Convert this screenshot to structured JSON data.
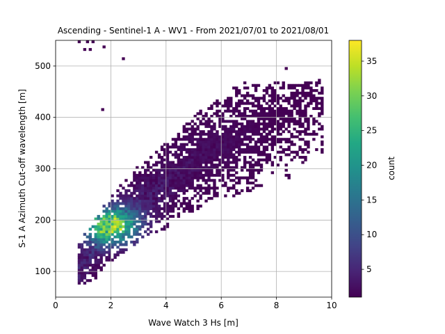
{
  "chart_data": {
    "type": "heatmap",
    "title": "Ascending - Sentinel-1 A - WV1 - From 2021/07/01 to 2021/08/01",
    "xlabel": "Wave Watch 3 Hs [m]",
    "ylabel": "S-1 A Azimuth Cut-off wavelength [m]",
    "xlim": [
      0,
      10
    ],
    "ylim": [
      50,
      550
    ],
    "x_ticks": [
      "0",
      "2",
      "4",
      "6",
      "8",
      "10"
    ],
    "y_ticks": [
      "100",
      "200",
      "300",
      "400",
      "500"
    ],
    "grid": true,
    "colormap": "viridis",
    "colorbar": {
      "label": "count",
      "range": [
        1,
        38
      ],
      "ticks": [
        "5",
        "10",
        "15",
        "20",
        "25",
        "30",
        "35"
      ]
    },
    "density_model": {
      "ridge_points": [
        [
          1.0,
          115
        ],
        [
          2.0,
          185
        ],
        [
          3.0,
          235
        ],
        [
          4.0,
          270
        ],
        [
          5.0,
          315
        ],
        [
          6.0,
          345
        ],
        [
          7.0,
          370
        ],
        [
          8.0,
          395
        ],
        [
          9.0,
          420
        ]
      ],
      "peak_x": 2.0,
      "peak_y": 190,
      "peak_count": 33
    },
    "outliers": [
      [
        0.8,
        545
      ],
      [
        1.1,
        545
      ],
      [
        1.3,
        545
      ],
      [
        1.0,
        530
      ],
      [
        1.2,
        530
      ],
      [
        1.7,
        535
      ],
      [
        2.4,
        512
      ],
      [
        1.65,
        413
      ],
      [
        8.3,
        493
      ],
      [
        9.5,
        470
      ]
    ]
  }
}
